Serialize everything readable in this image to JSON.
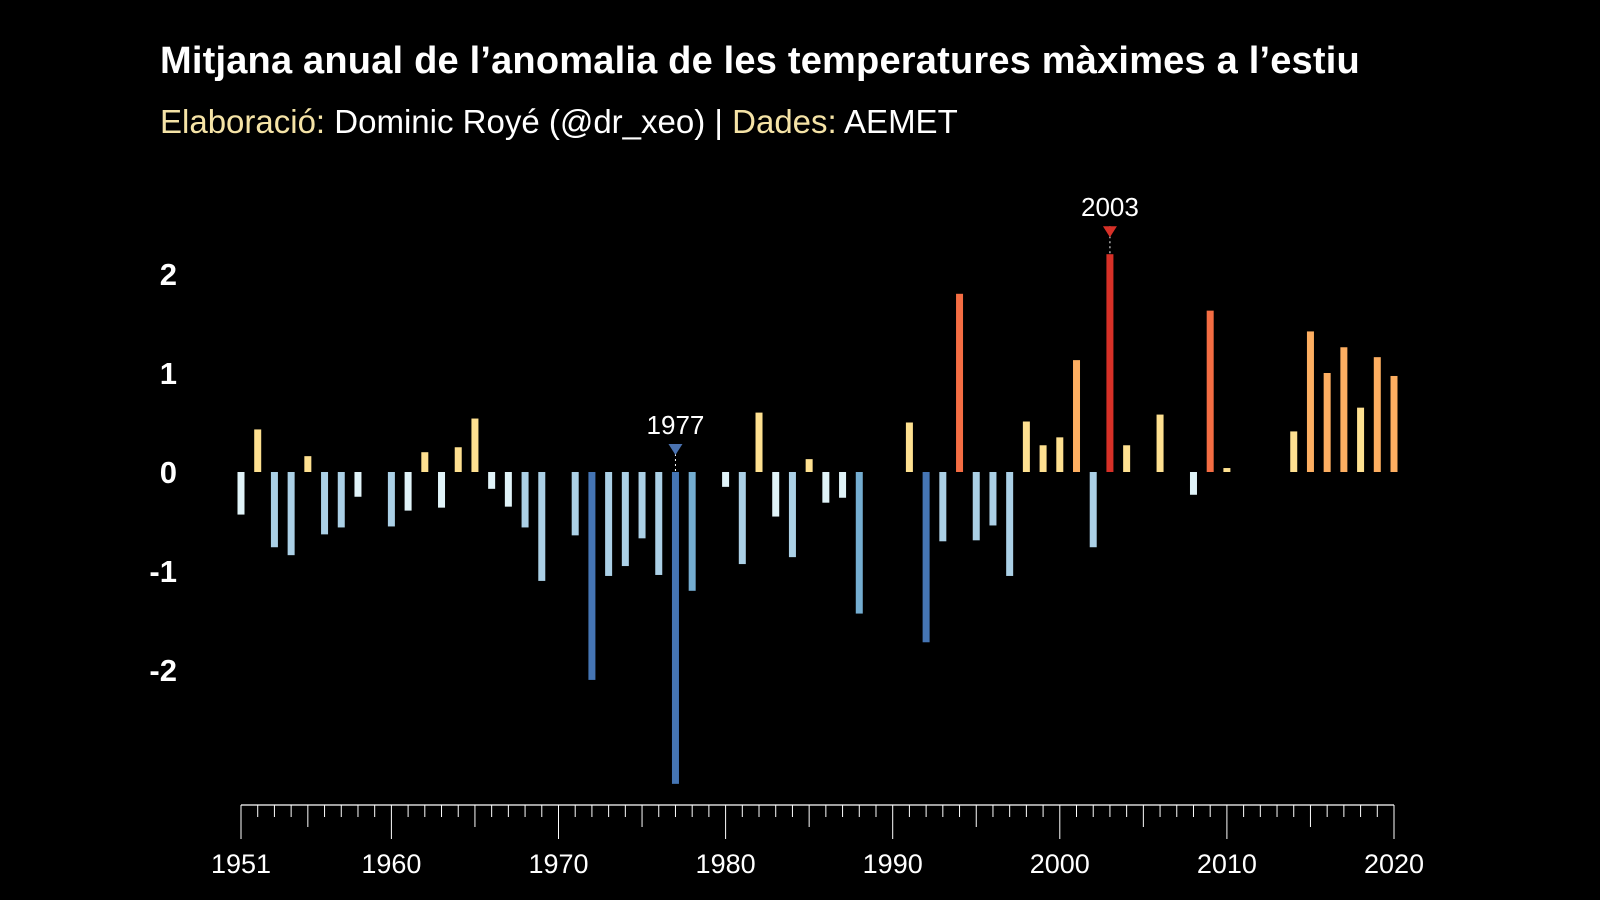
{
  "chart_data": {
    "type": "bar",
    "title": "Mitjana anual de l’anomalia de les temperatures màximes a l’estiu",
    "subtitle": {
      "label1": "Elaboració:",
      "author": " Dominic Royé (@dr_xeo) | ",
      "label2": "Dades:",
      "source": " AEMET"
    },
    "xlabel": "",
    "ylabel": "",
    "xlim": [
      1951,
      2020
    ],
    "ylim": [
      -3.2,
      2.4
    ],
    "yticks": [
      {
        "value": 2,
        "label": "2"
      },
      {
        "value": 1,
        "label": "1"
      },
      {
        "value": 0,
        "label": "0"
      },
      {
        "value": -1,
        "label": "-1"
      },
      {
        "value": -2,
        "label": "-2"
      }
    ],
    "xtick_labels": [
      "1951",
      "1960",
      "1970",
      "1980",
      "1990",
      "2000",
      "2010",
      "2020"
    ],
    "xtick_values": [
      1951,
      1960,
      1970,
      1980,
      1990,
      2000,
      2010,
      2020
    ],
    "annotations": [
      {
        "year": 1977,
        "label": "1977",
        "color": "#4a72b0"
      },
      {
        "year": 2003,
        "label": "2003",
        "color": "#d73027"
      }
    ],
    "years": [
      1951,
      1952,
      1953,
      1954,
      1955,
      1956,
      1957,
      1958,
      1959,
      1960,
      1961,
      1962,
      1963,
      1964,
      1965,
      1966,
      1967,
      1968,
      1969,
      1970,
      1971,
      1972,
      1973,
      1974,
      1975,
      1976,
      1977,
      1978,
      1979,
      1980,
      1981,
      1982,
      1983,
      1984,
      1985,
      1986,
      1987,
      1988,
      1989,
      1990,
      1991,
      1992,
      1993,
      1994,
      1995,
      1996,
      1997,
      1998,
      1999,
      2000,
      2001,
      2002,
      2003,
      2004,
      2005,
      2006,
      2007,
      2008,
      2009,
      2010,
      2011,
      2012,
      2013,
      2014,
      2015,
      2016,
      2017,
      2018,
      2019,
      2020
    ],
    "values": [
      -0.43,
      0.43,
      -0.76,
      -0.84,
      0.16,
      -0.63,
      -0.56,
      -0.25,
      0,
      -0.55,
      -0.39,
      0.2,
      -0.36,
      0.25,
      0.54,
      -0.17,
      -0.35,
      -0.56,
      -1.1,
      0,
      -0.64,
      -2.1,
      -1.05,
      -0.95,
      -0.67,
      -1.04,
      -3.15,
      -1.2,
      0,
      -0.15,
      -0.93,
      0.6,
      -0.45,
      -0.86,
      0.13,
      -0.31,
      -0.26,
      -1.43,
      0,
      0,
      0.5,
      -1.72,
      -0.7,
      1.8,
      -0.69,
      -0.54,
      -1.05,
      0.51,
      0.27,
      0.35,
      1.13,
      -0.76,
      2.2,
      0.27,
      0,
      0.58,
      0,
      -0.23,
      1.63,
      0.04,
      0,
      0,
      0,
      0.41,
      1.42,
      1.0,
      1.26,
      0.65,
      1.16,
      0.97
    ],
    "colors": {
      "warm_strong": "#d73027",
      "warm": "#f46d43",
      "warm_light": "#fdae61",
      "warm_pale": "#fee090",
      "cool_pale": "#e0f3f8",
      "cool_light": "#abd0e6",
      "cool": "#74add1",
      "cool_strong": "#4575b4"
    }
  }
}
